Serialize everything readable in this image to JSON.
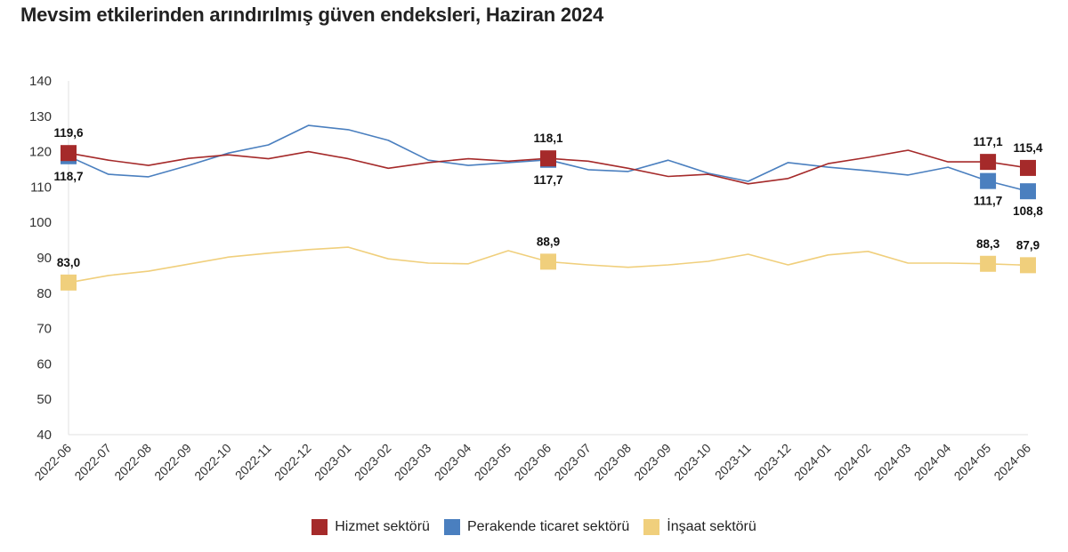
{
  "chart_data": {
    "type": "line",
    "title": "Mevsim etkilerinden arındırılmış güven endeksleri, Haziran 2024",
    "xlabel": "",
    "ylabel": "",
    "ylim": [
      40,
      140
    ],
    "yticks": [
      140,
      130,
      120,
      110,
      100,
      90,
      80,
      70,
      60,
      50,
      40
    ],
    "grid": false,
    "legend_position": "bottom",
    "categories": [
      "2022-06",
      "2022-07",
      "2022-08",
      "2022-09",
      "2022-10",
      "2022-11",
      "2022-12",
      "2023-01",
      "2023-02",
      "2023-03",
      "2023-04",
      "2023-05",
      "2023-06",
      "2023-07",
      "2023-08",
      "2023-09",
      "2023-10",
      "2023-11",
      "2023-12",
      "2024-01",
      "2024-02",
      "2024-03",
      "2024-04",
      "2024-05",
      "2024-06"
    ],
    "series": [
      {
        "name": "Hizmet sektörü",
        "color": "#a52a2a",
        "values": [
          119.6,
          117.6,
          116.1,
          118.1,
          119.1,
          118.0,
          120.0,
          118.0,
          115.3,
          116.9,
          118.0,
          117.3,
          118.1,
          117.3,
          115.3,
          113.0,
          113.6,
          110.9,
          112.4,
          116.6,
          118.4,
          120.4,
          117.1,
          117.1,
          115.4
        ],
        "labeled_points": [
          {
            "index": 0,
            "label": "119,6",
            "position": "above"
          },
          {
            "index": 12,
            "label": "118,1",
            "position": "above"
          },
          {
            "index": 23,
            "label": "117,1",
            "position": "above"
          },
          {
            "index": 24,
            "label": "115,4",
            "position": "above"
          }
        ]
      },
      {
        "name": "Perakende ticaret sektörü",
        "color": "#4a7fbf",
        "values": [
          118.7,
          113.6,
          112.9,
          116.1,
          119.6,
          121.9,
          127.4,
          126.2,
          123.2,
          117.6,
          116.1,
          116.9,
          117.7,
          114.9,
          114.4,
          117.6,
          113.9,
          111.6,
          116.9,
          115.6,
          114.6,
          113.4,
          115.6,
          111.7,
          108.8
        ],
        "labeled_points": [
          {
            "index": 0,
            "label": "118,7",
            "position": "below"
          },
          {
            "index": 12,
            "label": "117,7",
            "position": "below"
          },
          {
            "index": 23,
            "label": "111,7",
            "position": "below"
          },
          {
            "index": 24,
            "label": "108,8",
            "position": "below"
          }
        ]
      },
      {
        "name": "İnşaat sektörü",
        "color": "#f0cf7c",
        "values": [
          83.0,
          85.0,
          86.2,
          88.2,
          90.2,
          91.3,
          92.3,
          93.0,
          89.7,
          88.5,
          88.3,
          92.0,
          88.9,
          88.0,
          87.3,
          88.0,
          89.0,
          91.0,
          88.0,
          90.8,
          91.8,
          88.5,
          88.5,
          88.3,
          87.9
        ],
        "labeled_points": [
          {
            "index": 0,
            "label": "83,0",
            "position": "above"
          },
          {
            "index": 12,
            "label": "88,9",
            "position": "above"
          },
          {
            "index": 23,
            "label": "88,3",
            "position": "above"
          },
          {
            "index": 24,
            "label": "87,9",
            "position": "above"
          }
        ]
      }
    ]
  }
}
